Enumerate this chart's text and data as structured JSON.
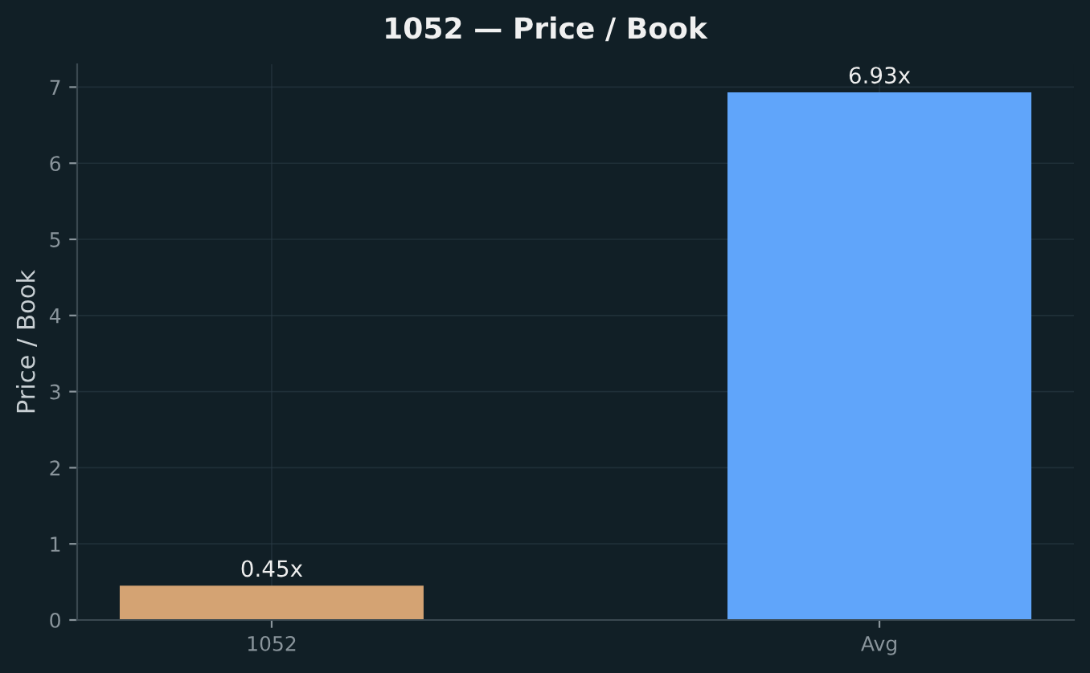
{
  "chart_data": {
    "type": "bar",
    "title": "1052 — Price / Book",
    "ylabel": "Price / Book",
    "categories": [
      "1052",
      "Avg"
    ],
    "values": [
      0.45,
      6.93
    ],
    "colors": [
      "#d4a373",
      "#60a5fa"
    ],
    "value_labels": [
      "0.45x",
      "6.93x"
    ],
    "ylim": [
      0,
      7.3
    ],
    "yticks": [
      0,
      1,
      2,
      3,
      4,
      5,
      6,
      7
    ],
    "grid": true
  }
}
